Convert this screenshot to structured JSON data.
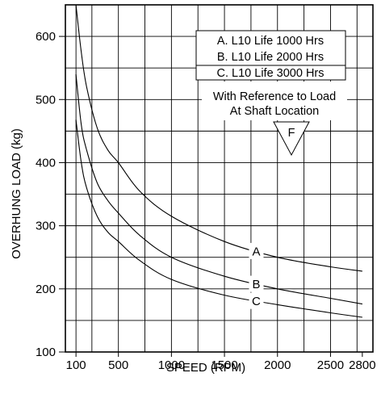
{
  "chart_data": {
    "type": "line",
    "title": "",
    "xlabel": "SPEED (RPM)",
    "ylabel": "OVERHUNG LOAD (kg)",
    "xlim": [
      0,
      2900
    ],
    "ylim": [
      100,
      650
    ],
    "x_ticks": [
      100,
      500,
      1000,
      1500,
      2000,
      2500,
      2800
    ],
    "x_tick_labels": [
      "100",
      "500",
      "1000",
      "1500",
      "2000",
      "2500",
      "2800"
    ],
    "y_ticks": [
      100,
      200,
      300,
      400,
      500,
      600
    ],
    "y_tick_labels": [
      "100",
      "200",
      "300",
      "400",
      "500",
      "600"
    ],
    "grid": true,
    "series": [
      {
        "name": "A",
        "x": [
          100,
          150,
          200,
          300,
          400,
          500,
          700,
          1000,
          1500,
          2000,
          2500,
          2800
        ],
        "y": [
          650,
          575,
          520,
          455,
          420,
          400,
          355,
          315,
          275,
          250,
          235,
          228
        ]
      },
      {
        "name": "B",
        "x": [
          100,
          150,
          200,
          300,
          400,
          500,
          700,
          1000,
          1500,
          2000,
          2500,
          2800
        ],
        "y": [
          540,
          460,
          420,
          368,
          340,
          320,
          285,
          250,
          220,
          200,
          185,
          176
        ]
      },
      {
        "name": "C",
        "x": [
          100,
          150,
          200,
          300,
          400,
          500,
          700,
          1000,
          1500,
          2000,
          2500,
          2800
        ],
        "y": [
          468,
          400,
          360,
          315,
          290,
          275,
          245,
          215,
          190,
          175,
          162,
          155
        ]
      }
    ],
    "legend": {
      "placement": "top-right",
      "entries": [
        "A. L10 Life 1000 Hrs",
        "B. L10 Life 2000 Hrs",
        "C. L10 Life 3000 Hrs"
      ]
    },
    "annotation": {
      "lines": [
        "With Reference to Load",
        "At Shaft Location"
      ],
      "marker": "F"
    }
  }
}
